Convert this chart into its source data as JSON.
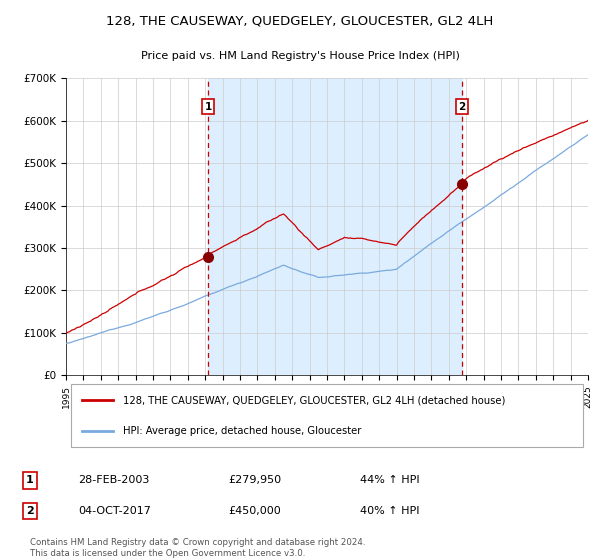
{
  "title": "128, THE CAUSEWAY, QUEDGELEY, GLOUCESTER, GL2 4LH",
  "subtitle": "Price paid vs. HM Land Registry's House Price Index (HPI)",
  "red_label": "128, THE CAUSEWAY, QUEDGELEY, GLOUCESTER, GL2 4LH (detached house)",
  "blue_label": "HPI: Average price, detached house, Gloucester",
  "purchase1_date": "28-FEB-2003",
  "purchase1_price": 279950,
  "purchase1_pct": "44% ↑ HPI",
  "purchase2_date": "04-OCT-2017",
  "purchase2_price": 450000,
  "purchase2_pct": "40% ↑ HPI",
  "footnote": "Contains HM Land Registry data © Crown copyright and database right 2024.\nThis data is licensed under the Open Government Licence v3.0.",
  "ylim": [
    0,
    700000
  ],
  "yticks": [
    0,
    100000,
    200000,
    300000,
    400000,
    500000,
    600000,
    700000
  ],
  "ytick_labels": [
    "£0",
    "£100K",
    "£200K",
    "£300K",
    "£400K",
    "£500K",
    "£600K",
    "£700K"
  ],
  "red_color": "#cc0000",
  "blue_color": "#7aaadd",
  "bg_shade_color": "#ddeeff",
  "vline_color": "#cc0000",
  "marker1_x": 2003.17,
  "marker1_y": 279950,
  "marker2_x": 2017.75,
  "marker2_y": 450000,
  "xmin": 1995,
  "xmax": 2025
}
